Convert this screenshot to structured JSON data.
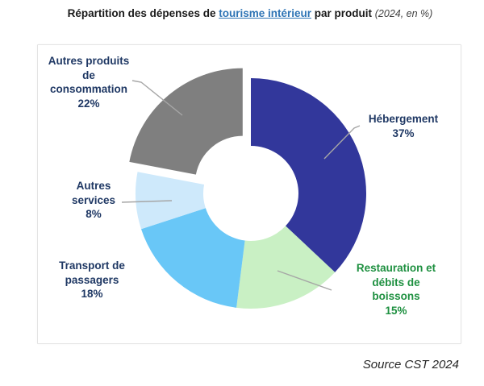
{
  "title": {
    "prefix": "Répartition des dépenses de ",
    "link": "tourisme intérieur",
    "middle": " par produit ",
    "paren": "(2024, en %)"
  },
  "source": "Source CST 2024",
  "chart_data": {
    "type": "pie",
    "subtype": "donut-exploded",
    "title": "Répartition des dépenses de tourisme intérieur par produit (2024, en %)",
    "year": "2024",
    "unit": "%",
    "direction": "clockwise",
    "start_angle_deg": 0,
    "inner_radius_ratio": 0.41,
    "legend_position": "labels-around-chart",
    "segments": [
      {
        "label": "Hébergement",
        "value": 37,
        "color": "#32379b",
        "label_color": "#1f3864",
        "display": "Hébergement\n37%",
        "exploded": false
      },
      {
        "label": "Restauration et débits de boissons",
        "value": 15,
        "color": "#c9f0c4",
        "label_color": "#1e9040",
        "display": "Restauration et\ndébits de\nboissons\n15%",
        "exploded": false
      },
      {
        "label": "Transport de passagers",
        "value": 18,
        "color": "#69c7f7",
        "label_color": "#1f3864",
        "display": "Transport de\npassagers\n18%",
        "exploded": false
      },
      {
        "label": "Autres services",
        "value": 8,
        "color": "#cee9fb",
        "label_color": "#1f3864",
        "display": "Autres\nservices\n8%",
        "exploded": false
      },
      {
        "label": "Autres produits de consommation",
        "value": 22,
        "color": "#7f7f7f",
        "label_color": "#1f3864",
        "display": "Autres produits\nde\nconsommation\n22%",
        "exploded": true
      }
    ]
  }
}
